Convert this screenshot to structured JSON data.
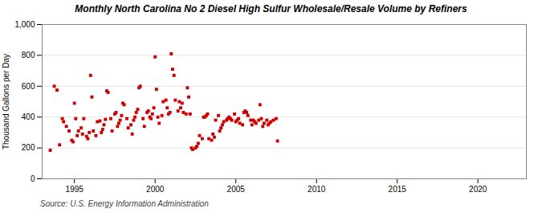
{
  "chart_data": {
    "type": "scatter",
    "title": "Monthly North Carolina No 2 Diesel High Sulfur Wholesale/Resale Volume by Refiners",
    "ylabel": "Thousand Gallons per Day",
    "source": "Source: U.S. Energy Information Administration",
    "color": "#cc0000",
    "marker": "square",
    "grid": "y",
    "xlim": [
      1993.0,
      2023.0
    ],
    "xticks": [
      1995,
      2000,
      2005,
      2010,
      2015,
      2020
    ],
    "ylim": [
      0,
      1000
    ],
    "yticks": [
      0,
      200,
      400,
      600,
      800,
      {
        "value": 1000,
        "label": "1,000"
      }
    ],
    "x": [
      1993.5,
      1993.75,
      1993.92,
      1994.08,
      1994.25,
      1994.33,
      1994.5,
      1994.67,
      1994.83,
      1994.92,
      1995.0,
      1995.08,
      1995.17,
      1995.25,
      1995.42,
      1995.5,
      1995.58,
      1995.75,
      1995.83,
      1995.92,
      1996.0,
      1996.08,
      1996.17,
      1996.33,
      1996.42,
      1996.58,
      1996.67,
      1996.75,
      1996.83,
      1996.92,
      1997.0,
      1997.08,
      1997.25,
      1997.33,
      1997.5,
      1997.58,
      1997.67,
      1997.75,
      1997.83,
      1997.92,
      1998.0,
      1998.08,
      1998.25,
      1998.33,
      1998.5,
      1998.58,
      1998.67,
      1998.75,
      1998.83,
      1998.92,
      1999.0,
      1999.08,
      1999.25,
      1999.33,
      1999.5,
      1999.58,
      1999.67,
      1999.75,
      1999.83,
      1999.92,
      2000.0,
      2000.08,
      2000.17,
      2000.25,
      2000.42,
      2000.5,
      2000.67,
      2000.75,
      2000.83,
      2000.92,
      2001.0,
      2001.08,
      2001.17,
      2001.25,
      2001.42,
      2001.5,
      2001.58,
      2001.67,
      2001.75,
      2001.92,
      2002.0,
      2002.08,
      2002.17,
      2002.25,
      2002.33,
      2002.5,
      2002.58,
      2002.67,
      2002.75,
      2002.92,
      2003.0,
      2003.08,
      2003.17,
      2003.25,
      2003.33,
      2003.5,
      2003.58,
      2003.67,
      2003.75,
      2003.92,
      2004.0,
      2004.08,
      2004.17,
      2004.25,
      2004.42,
      2004.5,
      2004.58,
      2004.67,
      2004.75,
      2004.92,
      2005.0,
      2005.08,
      2005.17,
      2005.25,
      2005.42,
      2005.5,
      2005.58,
      2005.67,
      2005.75,
      2005.92,
      2006.0,
      2006.08,
      2006.17,
      2006.25,
      2006.42,
      2006.5,
      2006.58,
      2006.67,
      2006.75,
      2006.92,
      2007.0,
      2007.08,
      2007.17,
      2007.33,
      2007.5,
      2007.58
    ],
    "values": [
      185,
      600,
      575,
      220,
      390,
      370,
      340,
      310,
      250,
      240,
      490,
      390,
      280,
      310,
      330,
      290,
      390,
      275,
      260,
      300,
      670,
      530,
      310,
      280,
      370,
      375,
      300,
      320,
      350,
      385,
      570,
      560,
      390,
      310,
      420,
      430,
      340,
      360,
      380,
      410,
      490,
      480,
      390,
      330,
      350,
      290,
      380,
      400,
      430,
      450,
      590,
      600,
      390,
      340,
      430,
      440,
      400,
      390,
      420,
      460,
      790,
      580,
      400,
      360,
      410,
      500,
      510,
      460,
      420,
      430,
      810,
      710,
      670,
      510,
      440,
      500,
      460,
      490,
      430,
      420,
      590,
      530,
      420,
      200,
      190,
      200,
      210,
      230,
      280,
      260,
      400,
      400,
      410,
      420,
      260,
      250,
      290,
      270,
      380,
      410,
      310,
      330,
      350,
      370,
      380,
      390,
      400,
      390,
      380,
      420,
      370,
      380,
      390,
      360,
      350,
      430,
      440,
      430,
      410,
      380,
      350,
      380,
      370,
      360,
      380,
      480,
      390,
      340,
      360,
      380,
      350,
      360,
      370,
      380,
      390,
      245
    ]
  }
}
